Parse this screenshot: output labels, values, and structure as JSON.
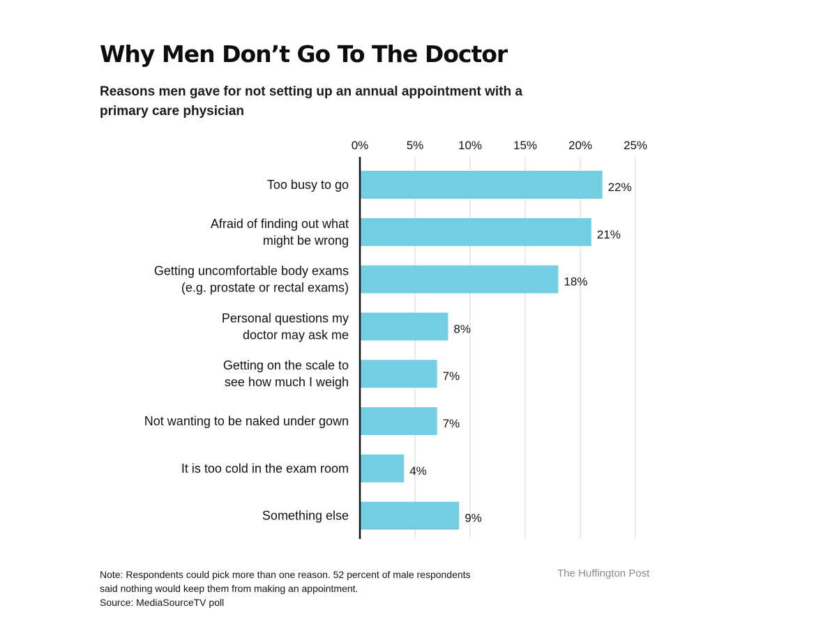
{
  "title": "Why Men Don’t Go To The Doctor",
  "subtitle": "Reasons men gave for not setting up an annual appointment with a primary care physician",
  "note": {
    "line1": "Note: Respondents could pick more than one reason. 52 percent of male respondents",
    "line2": "said nothing would keep them from making an appointment.",
    "source": "Source: MediaSourceTV poll"
  },
  "credit": "The Huffington Post",
  "colors": {
    "bar": "#74cee2",
    "axis": "#111111",
    "grid": "#d6d6d6"
  },
  "chart_data": {
    "type": "bar",
    "orientation": "horizontal",
    "categories": [
      [
        "Too busy to go"
      ],
      [
        "Afraid of finding out what",
        "might be wrong"
      ],
      [
        "Getting uncomfortable body exams",
        "(e.g. prostate or rectal exams)"
      ],
      [
        "Personal questions my",
        "doctor may ask me"
      ],
      [
        "Getting on the scale to",
        "see how much I weigh"
      ],
      [
        "Not wanting to be naked under gown"
      ],
      [
        "It is too cold in the exam room"
      ],
      [
        "Something else"
      ]
    ],
    "values": [
      22,
      21,
      18,
      8,
      7,
      7,
      4,
      9
    ],
    "value_labels": [
      "22%",
      "21%",
      "18%",
      "8%",
      "7%",
      "7%",
      "4%",
      "9%"
    ],
    "xlim": [
      0,
      25
    ],
    "xticks": [
      0,
      5,
      10,
      15,
      20,
      25
    ],
    "xtick_labels": [
      "0%",
      "5%",
      "10%",
      "15%",
      "20%",
      "25%"
    ],
    "xaxis_position": "top",
    "grid": true
  }
}
